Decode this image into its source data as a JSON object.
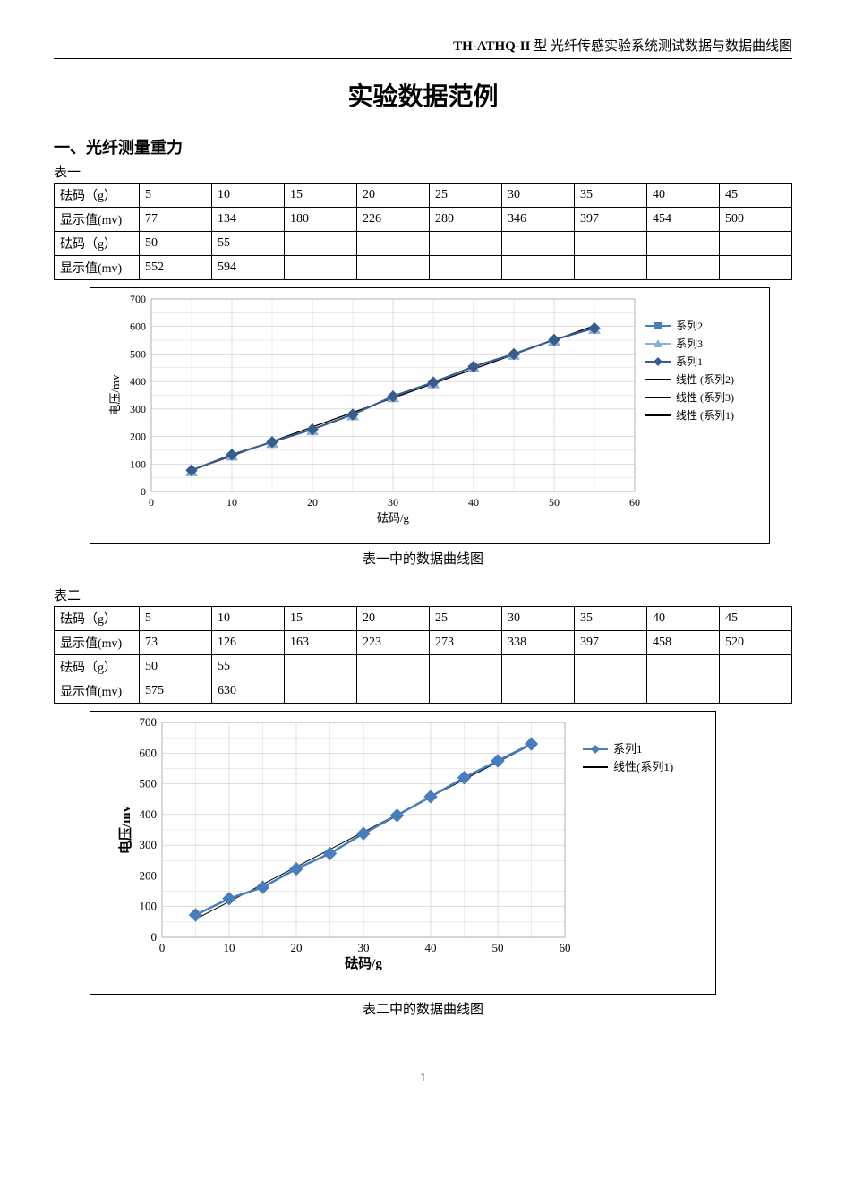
{
  "header": {
    "bold_part": "TH-ATHQ-II",
    "rest": " 型  光纤传感实验系统测试数据与数据曲线图"
  },
  "title": "实验数据范例",
  "section1_title": "一、光纤测量重力",
  "table1": {
    "label": "表一",
    "row_headers": [
      "砝码（g）",
      "显示值(mv)",
      "砝码（g）",
      "显示值(mv)"
    ],
    "rows": [
      [
        "5",
        "10",
        "15",
        "20",
        "25",
        "30",
        "35",
        "40",
        "45"
      ],
      [
        "77",
        "134",
        "180",
        "226",
        "280",
        "346",
        "397",
        "454",
        "500"
      ],
      [
        "50",
        "55",
        "",
        "",
        "",
        "",
        "",
        "",
        ""
      ],
      [
        "552",
        "594",
        "",
        "",
        "",
        "",
        "",
        "",
        ""
      ]
    ]
  },
  "chart1": {
    "caption": "表一中的数据曲线图",
    "ylabel": "电压/mv",
    "xlabel": "砝码/g",
    "xlim": [
      0,
      60
    ],
    "ylim": [
      0,
      700
    ],
    "xtick_step": 10,
    "ytick_step": 100,
    "tick_fontsize": 12,
    "label_fontsize": 13,
    "border_color": "#000000",
    "plot_bg": "#ffffff",
    "grid_color": "#bfbfbf",
    "grid_width": 0.5,
    "series": [
      {
        "name": "系列2",
        "marker": "square",
        "color": "#4a7ebb",
        "size": 6,
        "x": [
          5,
          10,
          15,
          20,
          25,
          30,
          35,
          40,
          45,
          50,
          55
        ],
        "y": [
          77,
          134,
          180,
          226,
          280,
          346,
          397,
          454,
          500,
          552,
          594
        ]
      },
      {
        "name": "系列3",
        "marker": "triangle",
        "color": "#8aaed6",
        "size": 6,
        "x": [
          5,
          10,
          15,
          20,
          25,
          30,
          35,
          40,
          45,
          50,
          55
        ],
        "y": [
          77,
          134,
          180,
          226,
          280,
          346,
          397,
          454,
          500,
          552,
          594
        ]
      },
      {
        "name": "系列1",
        "marker": "diamond",
        "color": "#385d8a",
        "size": 6,
        "x": [
          5,
          10,
          15,
          20,
          25,
          30,
          35,
          40,
          45,
          50,
          55
        ],
        "y": [
          77,
          134,
          180,
          226,
          280,
          346,
          397,
          454,
          500,
          552,
          594
        ]
      }
    ],
    "trendlines": [
      {
        "name": "线性 (系列2)",
        "color": "#000000",
        "width": 1
      },
      {
        "name": "线性 (系列3)",
        "color": "#000000",
        "width": 1
      },
      {
        "name": "线性 (系列1)",
        "color": "#000000",
        "width": 1
      }
    ],
    "legend_fontsize": 12
  },
  "table2": {
    "label": "表二",
    "row_headers": [
      "砝码（g）",
      "显示值(mv)",
      "砝码（g）",
      "显示值(mv)"
    ],
    "rows": [
      [
        "5",
        "10",
        "15",
        "20",
        "25",
        "30",
        "35",
        "40",
        "45"
      ],
      [
        "73",
        "126",
        "163",
        "223",
        "273",
        "338",
        "397",
        "458",
        "520"
      ],
      [
        "50",
        "55",
        "",
        "",
        "",
        "",
        "",
        "",
        ""
      ],
      [
        "575",
        "630",
        "",
        "",
        "",
        "",
        "",
        "",
        ""
      ]
    ]
  },
  "chart2": {
    "caption": "表二中的数据曲线图",
    "ylabel": "电压/mv",
    "xlabel": "砝码/g",
    "xlim": [
      0,
      60
    ],
    "ylim": [
      0,
      700
    ],
    "xtick_step": 10,
    "ytick_step": 100,
    "tick_fontsize": 13,
    "label_fontsize": 15,
    "label_bold": true,
    "border_color": "#000000",
    "plot_bg": "#ffffff",
    "grid_color": "#bfbfbf",
    "grid_width": 0.5,
    "series": [
      {
        "name": "系列1",
        "marker": "diamond",
        "color": "#4a7ebb",
        "size": 7,
        "line_width": 2.5,
        "x": [
          5,
          10,
          15,
          20,
          25,
          30,
          35,
          40,
          45,
          50,
          55
        ],
        "y": [
          73,
          126,
          163,
          223,
          273,
          338,
          397,
          458,
          520,
          575,
          630
        ]
      }
    ],
    "trendlines": [
      {
        "name": "线性(系列1)",
        "color": "#000000",
        "width": 1
      }
    ],
    "legend_fontsize": 13
  },
  "page_number": "1"
}
